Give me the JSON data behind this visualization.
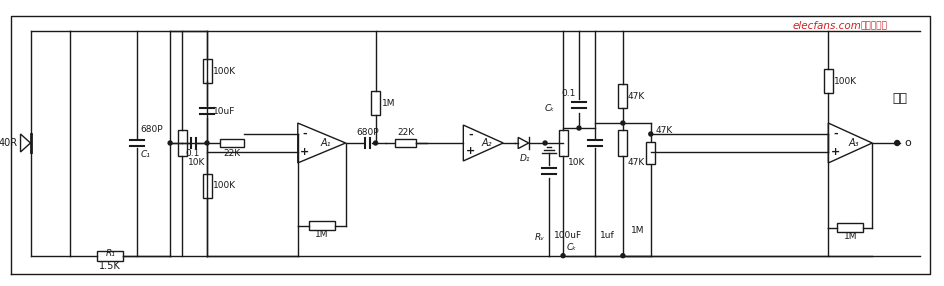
{
  "bg_color": "#ffffff",
  "line_color": "#1a1a1a",
  "figsize": [
    9.44,
    2.86
  ],
  "dpi": 100,
  "watermark_text": "elecfans.com",
  "watermark_chinese": "电子发烧友",
  "output_label": "输出",
  "components": {
    "R1_label": "1.5K",
    "R1_sub": "R₁",
    "C1_label": "680P",
    "C1_sub": "C₁",
    "sensor_label": "40R",
    "R_10K_1": "10K",
    "R_01": "0.1",
    "R_22K": "22K",
    "R_10uF": "10uF",
    "R_100K_bot": "100K",
    "R_100K_top": "100K",
    "R_1M_fb": "1M",
    "A1_label": "A₁",
    "R_680P": "680P",
    "R_22K_2": "22K",
    "R_1M_bot": "1M",
    "A2_label": "A₂",
    "cap_100uF": "100uF",
    "D1_label": "D₁",
    "Rv_label": "Rᵥ",
    "R_10K_2": "10K",
    "Ck_label": "Cₖ",
    "cap_1uf": "1uf",
    "R_1M_top3": "1M",
    "R_47K_top": "47K",
    "R_1M_fb3": "1M",
    "A3_label": "A₃",
    "R_47K_mid": "47K",
    "R_47K_bot": "47K",
    "R_100K_bot3": "100K",
    "cap_01": "0.1"
  }
}
